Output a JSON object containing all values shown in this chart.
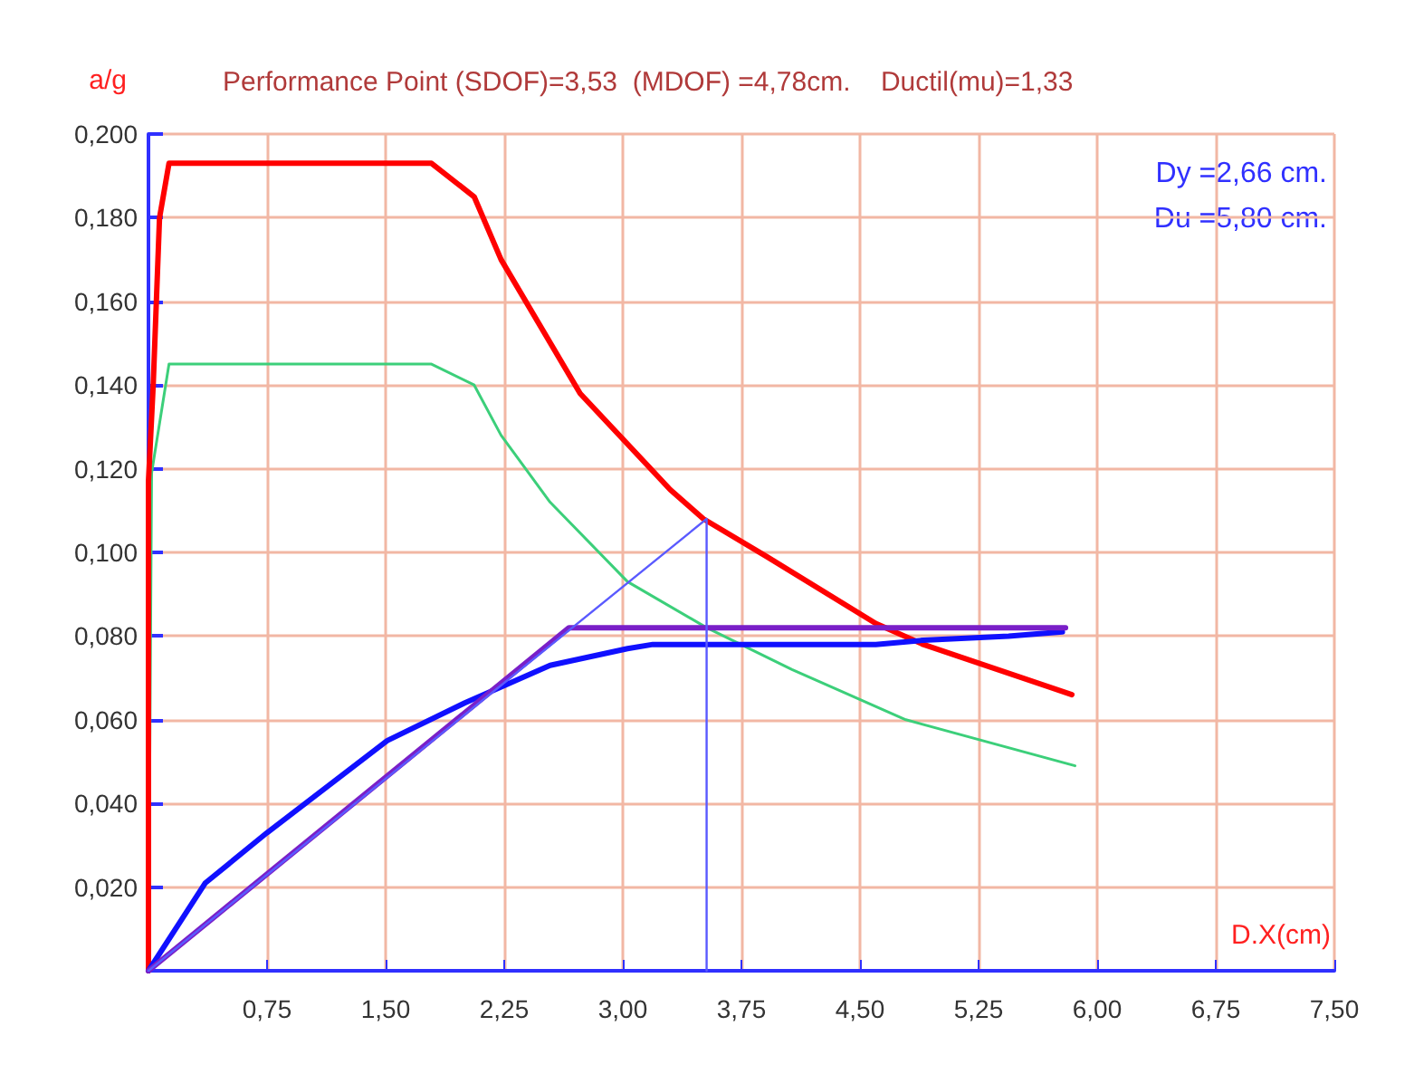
{
  "chart_data": {
    "type": "line",
    "title": "Performance Point (SDOF)=3,53  (MDOF) =4,78cm.    Ductil(mu)=1,33",
    "ylabel": "a/g",
    "xlabel": "D.X(cm)",
    "annotations": [
      "Dy =2,66 cm.",
      "Du =5,80 cm."
    ],
    "xlim": [
      0,
      7.5
    ],
    "ylim": [
      0,
      0.2
    ],
    "xticks": [
      {
        "value": 0.75,
        "label": "0,75"
      },
      {
        "value": 1.5,
        "label": "1,50"
      },
      {
        "value": 2.25,
        "label": "2,25"
      },
      {
        "value": 3,
        "label": "3,00"
      },
      {
        "value": 3.75,
        "label": "3,75"
      },
      {
        "value": 4.5,
        "label": "4,50"
      },
      {
        "value": 5.25,
        "label": "5,25"
      },
      {
        "value": 6,
        "label": "6,00"
      },
      {
        "value": 6.75,
        "label": "6,75"
      },
      {
        "value": 7.5,
        "label": "7,50"
      }
    ],
    "yticks": [
      {
        "value": 0.02,
        "label": "0,020"
      },
      {
        "value": 0.04,
        "label": "0,040"
      },
      {
        "value": 0.06,
        "label": "0,060"
      },
      {
        "value": 0.08,
        "label": "0,080"
      },
      {
        "value": 0.1,
        "label": "0,100"
      },
      {
        "value": 0.12,
        "label": "0,120"
      },
      {
        "value": 0.14,
        "label": "0,140"
      },
      {
        "value": 0.16,
        "label": "0,160"
      },
      {
        "value": 0.18,
        "label": "0,180"
      },
      {
        "value": 0.2,
        "label": "0,200"
      }
    ],
    "grid": true,
    "marker": "none",
    "line_style": "solid",
    "series": [
      {
        "color": "#3ccf7a",
        "x": [
          0,
          0.02,
          0.13,
          1.79,
          2.06,
          2.23,
          2.54,
          3.03,
          3.53,
          4.07,
          4.79,
          5.86
        ],
        "values": [
          0,
          0.119,
          0.145,
          0.145,
          0.14,
          0.128,
          0.112,
          0.093,
          0.082,
          0.072,
          0.06,
          0.049
        ]
      },
      {
        "color": "#ff0000",
        "x": [
          0,
          0,
          0.03,
          0.07,
          0.13,
          1.79,
          2.06,
          2.23,
          2.73,
          3.3,
          3.51,
          3.91,
          4.6,
          4.9,
          5.84
        ],
        "values": [
          0,
          0.117,
          0.14,
          0.18,
          0.193,
          0.193,
          0.185,
          0.17,
          0.138,
          0.115,
          0.108,
          0.099,
          0.083,
          0.078,
          0.066
        ]
      },
      {
        "color": "#1010ff",
        "x": [
          0,
          0.36,
          0.75,
          1.51,
          2,
          2.54,
          3.03,
          3.19,
          3.91,
          4.6,
          4.9,
          5.44,
          5.78
        ],
        "values": [
          0,
          0.021,
          0.033,
          0.055,
          0.064,
          0.073,
          0.077,
          0.078,
          0.078,
          0.078,
          0.079,
          0.08,
          0.081
        ]
      },
      {
        "color": "#7a1fc8",
        "x": [
          0,
          2.66,
          5.8
        ],
        "values": [
          0,
          0.082,
          0.082
        ]
      },
      {
        "color": "#5a5aff",
        "x": [
          0,
          3.53,
          3.53
        ],
        "values": [
          0,
          0.108,
          0
        ]
      }
    ]
  }
}
